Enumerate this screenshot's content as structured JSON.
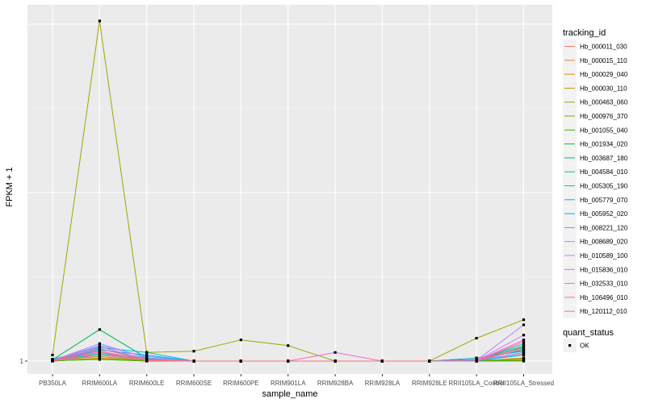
{
  "chart_data": {
    "type": "line",
    "title": "",
    "xlabel": "sample_name",
    "ylabel": "FPKM + 1",
    "y_scale": "log",
    "y_ticks": [
      "1"
    ],
    "grid": true,
    "legend_position": "right",
    "categories": [
      "PB350LA",
      "RRIM600LA",
      "RRIM600LE",
      "RRIM600SE",
      "RRIM600PE",
      "RRIM901LA",
      "RRIM928BA",
      "RRIM928LA",
      "RRIM928LE",
      "RRII105LA_Control",
      "RRII105LA_Stressed"
    ],
    "category_labels": [
      "PB350LA",
      "RRIM600LA",
      "RRIM600LE",
      "RRIM600SE",
      "RRIM600PE",
      "RRIM901LA",
      "RRIM928BA",
      "RRIM928LA",
      "RRIM928LE",
      "RRII105LA_Control",
      "RRII105LA_Stressed"
    ],
    "legend_title": "tracking_id",
    "series": [
      {
        "name": "Hb_000011_030",
        "color": "#F8766D",
        "values": [
          1.05,
          1.35,
          1.04,
          1,
          1,
          1,
          1,
          1,
          1,
          1,
          1.25
        ]
      },
      {
        "name": "Hb_000015_110",
        "color": "#EA8331",
        "values": [
          1.03,
          1.2,
          1.02,
          1,
          1,
          1,
          1,
          1,
          1,
          1,
          1.1
        ]
      },
      {
        "name": "Hb_000029_040",
        "color": "#D89000",
        "values": [
          1.0,
          1.1,
          1.01,
          1,
          1,
          1,
          1,
          1,
          1,
          1,
          1.05
        ]
      },
      {
        "name": "Hb_000030_110",
        "color": "#C09B00",
        "values": [
          1.0,
          1.08,
          1.0,
          1,
          1,
          1,
          1,
          1,
          1,
          1,
          1.0
        ]
      },
      {
        "name": "Hb_000463_060",
        "color": "#A3A500",
        "values": [
          1.2,
          30000,
          1.3,
          1.35,
          1.9,
          1.6,
          1.0,
          1.0,
          1.0,
          2.0,
          3.5
        ]
      },
      {
        "name": "Hb_000976_370",
        "color": "#7CAE00",
        "values": [
          1.02,
          1.15,
          1.01,
          1,
          1,
          1,
          1,
          1,
          1,
          1,
          1.08
        ]
      },
      {
        "name": "Hb_001055_040",
        "color": "#39B600",
        "values": [
          1.01,
          1.05,
          1.0,
          1,
          1,
          1,
          1,
          1,
          1,
          1,
          1.02
        ]
      },
      {
        "name": "Hb_001934_020",
        "color": "#00BB4E",
        "values": [
          1.04,
          2.6,
          1.1,
          1,
          1,
          1,
          1,
          1,
          1,
          1.05,
          1.4
        ]
      },
      {
        "name": "Hb_003687_180",
        "color": "#00BF7D",
        "values": [
          1.03,
          1.45,
          1.08,
          1,
          1,
          1,
          1,
          1,
          1,
          1.04,
          1.5
        ]
      },
      {
        "name": "Hb_004584_010",
        "color": "#00C1A3",
        "values": [
          1.02,
          1.3,
          1.06,
          1,
          1,
          1,
          1,
          1,
          1,
          1.03,
          1.6
        ]
      },
      {
        "name": "Hb_005305_190",
        "color": "#00BFC4",
        "values": [
          1.01,
          1.25,
          1.05,
          1,
          1,
          1,
          1,
          1,
          1,
          1.02,
          1.7
        ]
      },
      {
        "name": "Hb_005779_070",
        "color": "#00B9E3",
        "values": [
          1.06,
          1.5,
          1.3,
          1,
          1,
          1,
          1,
          1,
          1,
          1.1,
          1.35
        ]
      },
      {
        "name": "Hb_005952_020",
        "color": "#00ADFA",
        "values": [
          1.02,
          1.4,
          1.2,
          1,
          1,
          1,
          1,
          1,
          1,
          1.01,
          1.2
        ]
      },
      {
        "name": "Hb_008221_120",
        "color": "#619CFF",
        "values": [
          1.03,
          1.6,
          1.15,
          1,
          1,
          1,
          1,
          1,
          1,
          1.02,
          1.3
        ]
      },
      {
        "name": "Hb_008689_020",
        "color": "#AE87FF",
        "values": [
          1.02,
          1.7,
          1.1,
          1,
          1,
          1,
          1,
          1,
          1,
          1.02,
          3.0
        ]
      },
      {
        "name": "Hb_010589_100",
        "color": "#DB72FB",
        "values": [
          1.02,
          1.55,
          1.05,
          1,
          1,
          1,
          1,
          1,
          1,
          1.01,
          2.2
        ]
      },
      {
        "name": "Hb_015836_010",
        "color": "#F564E3",
        "values": [
          1.01,
          1.35,
          1.02,
          1,
          1,
          1,
          1.3,
          1,
          1,
          1.01,
          1.9
        ]
      },
      {
        "name": "Hb_032533_010",
        "color": "#FF61C3",
        "values": [
          1.01,
          1.2,
          1.03,
          1,
          1,
          1,
          1,
          1,
          1,
          1.0,
          1.45
        ]
      },
      {
        "name": "Hb_106496_010",
        "color": "#FF6C91",
        "values": [
          1.03,
          1.45,
          1.04,
          1,
          1,
          1,
          1,
          1,
          1,
          1.0,
          1.8
        ]
      },
      {
        "name": "Hb_120112_010",
        "color": "#F8766D",
        "values": [
          1.02,
          1.3,
          1.02,
          1,
          1,
          1,
          1,
          1,
          1,
          1.0,
          1.55
        ]
      }
    ],
    "shape_legend": {
      "title": "quant_status",
      "items": [
        "OK"
      ]
    }
  }
}
